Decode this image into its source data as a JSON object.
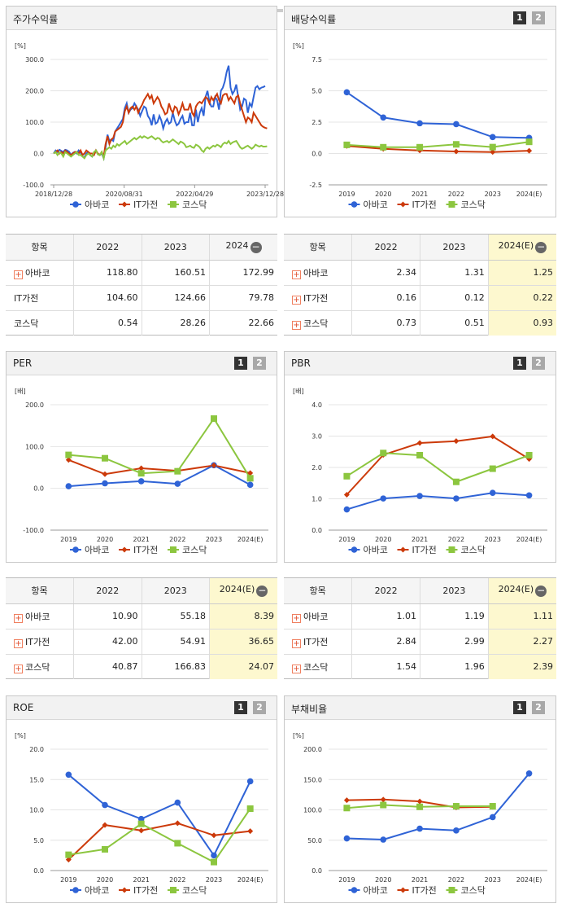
{
  "colors": {
    "s1": "#2f63d6",
    "s2": "#cc3a0a",
    "s3": "#8cc63f"
  },
  "legend": [
    "아바코",
    "IT가전",
    "코스닥"
  ],
  "pages": {
    "p1": "1",
    "p2": "2"
  },
  "panels": {
    "stock": {
      "title": "주가수익률"
    },
    "div": {
      "title": "배당수익률"
    },
    "per": {
      "title": "PER"
    },
    "pbr": {
      "title": "PBR"
    },
    "roe": {
      "title": "ROE"
    },
    "debt": {
      "title": "부채비율"
    }
  },
  "chart_data": [
    {
      "id": "stock",
      "type": "line",
      "unit": "[%]",
      "x_ticks": [
        "2018/12/28",
        "2020/08/31",
        "2022/04/29",
        "2023/12/28"
      ],
      "y_ticks": [
        "300.0",
        "200.0",
        "100.0",
        "0.0",
        "-100.0"
      ],
      "ylim": [
        -100,
        300
      ],
      "markers": false,
      "series": [
        {
          "name": "아바코",
          "values": [
            0,
            10,
            5,
            12,
            8,
            5,
            12,
            10,
            6,
            -5,
            2,
            5,
            0,
            10,
            3,
            -10,
            -12,
            0,
            5,
            -5,
            -10,
            0,
            10,
            -2,
            -5,
            0,
            -15,
            20,
            60,
            40,
            45,
            40,
            70,
            80,
            90,
            100,
            110,
            145,
            160,
            130,
            140,
            145,
            160,
            150,
            140,
            120,
            135,
            150,
            145,
            120,
            110,
            90,
            125,
            95,
            100,
            120,
            105,
            80,
            100,
            110,
            95,
            100,
            130,
            105,
            90,
            95,
            110,
            120,
            95,
            100,
            100,
            130,
            90,
            90,
            140,
            100,
            130,
            145,
            120,
            180,
            200,
            165,
            150,
            150,
            180,
            170,
            140,
            200,
            210,
            230,
            260,
            280,
            210,
            190,
            200,
            220,
            180,
            140,
            150,
            175,
            170,
            130,
            160,
            150,
            180,
            210,
            215,
            205,
            210,
            212,
            215
          ]
        },
        {
          "name": "IT가전",
          "values": [
            0,
            5,
            10,
            0,
            5,
            0,
            10,
            5,
            0,
            -5,
            0,
            5,
            5,
            0,
            10,
            -5,
            0,
            10,
            5,
            0,
            0,
            -5,
            10,
            0,
            -5,
            5,
            -10,
            30,
            55,
            30,
            45,
            50,
            70,
            75,
            80,
            85,
            100,
            135,
            150,
            130,
            145,
            150,
            140,
            150,
            130,
            145,
            155,
            170,
            180,
            190,
            175,
            185,
            160,
            170,
            180,
            170,
            150,
            140,
            125,
            130,
            160,
            140,
            130,
            150,
            145,
            125,
            140,
            160,
            140,
            140,
            140,
            160,
            130,
            120,
            150,
            160,
            165,
            160,
            170,
            180,
            175,
            160,
            180,
            170,
            180,
            190,
            170,
            160,
            185,
            190,
            190,
            170,
            180,
            170,
            160,
            180,
            185,
            160,
            140,
            120,
            100,
            115,
            110,
            100,
            130,
            120,
            110,
            100,
            90,
            85,
            82,
            80
          ]
        },
        {
          "name": "코스닥",
          "values": [
            0,
            5,
            -5,
            3,
            0,
            -10,
            5,
            0,
            -5,
            -10,
            -5,
            0,
            5,
            -5,
            -5,
            -10,
            -15,
            -5,
            0,
            -5,
            -10,
            5,
            10,
            -3,
            -5,
            5,
            -15,
            10,
            15,
            20,
            15,
            25,
            20,
            30,
            25,
            30,
            35,
            40,
            30,
            35,
            40,
            45,
            50,
            45,
            50,
            55,
            50,
            55,
            52,
            48,
            52,
            55,
            50,
            45,
            50,
            48,
            40,
            35,
            38,
            40,
            35,
            40,
            45,
            40,
            35,
            30,
            38,
            35,
            30,
            20,
            22,
            25,
            20,
            18,
            28,
            25,
            20,
            10,
            5,
            15,
            20,
            15,
            20,
            25,
            22,
            28,
            25,
            20,
            30,
            35,
            32,
            40,
            30,
            35,
            38,
            40,
            30,
            20,
            15,
            18,
            22,
            25,
            20,
            15,
            20,
            28,
            25,
            22,
            25,
            22,
            22,
            23
          ]
        }
      ]
    },
    {
      "id": "div",
      "type": "line",
      "unit": "[%]",
      "x_ticks": [
        "2019",
        "2020",
        "2021",
        "2022",
        "2023",
        "2024(E)"
      ],
      "y_ticks": [
        "7.5",
        "5.0",
        "2.5",
        "0.0",
        "-2.5"
      ],
      "ylim": [
        -2.5,
        7.5
      ],
      "series": [
        {
          "name": "아바코",
          "values": [
            4.88,
            2.87,
            2.41,
            2.34,
            1.31,
            1.25
          ]
        },
        {
          "name": "IT가전",
          "values": [
            0.6,
            0.37,
            0.24,
            0.16,
            0.12,
            0.22
          ]
        },
        {
          "name": "코스닥",
          "values": [
            0.69,
            0.5,
            0.5,
            0.73,
            0.51,
            0.93
          ]
        }
      ]
    },
    {
      "id": "per",
      "type": "line",
      "unit": "[배]",
      "x_ticks": [
        "2019",
        "2020",
        "2021",
        "2022",
        "2023",
        "2024(E)"
      ],
      "y_ticks": [
        "200.0",
        "100.0",
        "0.0",
        "-100.0"
      ],
      "ylim": [
        -100,
        200
      ],
      "series": [
        {
          "name": "아바코",
          "values": [
            5.0,
            12.0,
            17.0,
            10.9,
            55.18,
            8.39
          ]
        },
        {
          "name": "IT가전",
          "values": [
            68.0,
            34.0,
            48.0,
            42.0,
            54.91,
            36.65
          ]
        },
        {
          "name": "코스닥",
          "values": [
            80.0,
            72.0,
            36.0,
            40.87,
            166.83,
            24.07
          ]
        }
      ]
    },
    {
      "id": "pbr",
      "type": "line",
      "unit": "[배]",
      "x_ticks": [
        "2019",
        "2020",
        "2021",
        "2022",
        "2023",
        "2024(E)"
      ],
      "y_ticks": [
        "4.0",
        "3.0",
        "2.0",
        "1.0",
        "0.0"
      ],
      "ylim": [
        0,
        4
      ],
      "series": [
        {
          "name": "아바코",
          "values": [
            0.66,
            1.01,
            1.09,
            1.01,
            1.19,
            1.11
          ]
        },
        {
          "name": "IT가전",
          "values": [
            1.13,
            2.4,
            2.78,
            2.84,
            2.99,
            2.27
          ]
        },
        {
          "name": "코스닥",
          "values": [
            1.72,
            2.46,
            2.39,
            1.54,
            1.96,
            2.39
          ]
        }
      ]
    },
    {
      "id": "roe",
      "type": "line",
      "unit": "[%]",
      "x_ticks": [
        "2019",
        "2020",
        "2021",
        "2022",
        "2023",
        "2024(E)"
      ],
      "y_ticks": [
        "20.0",
        "15.0",
        "10.0",
        "5.0",
        "0.0"
      ],
      "ylim": [
        0,
        20
      ],
      "series": [
        {
          "name": "아바코",
          "values": [
            15.8,
            10.8,
            8.5,
            11.2,
            2.5,
            14.7
          ]
        },
        {
          "name": "IT가전",
          "values": [
            1.8,
            7.5,
            6.6,
            7.8,
            5.8,
            6.5
          ]
        },
        {
          "name": "코스닥",
          "values": [
            2.6,
            3.5,
            7.7,
            4.5,
            1.4,
            10.2
          ]
        }
      ]
    },
    {
      "id": "debt",
      "type": "line",
      "unit": "[%]",
      "x_ticks": [
        "2019",
        "2020",
        "2021",
        "2022",
        "2023",
        "2024(E)"
      ],
      "y_ticks": [
        "200.0",
        "150.0",
        "100.0",
        "50.0",
        "0.0"
      ],
      "ylim": [
        0,
        200
      ],
      "series": [
        {
          "name": "아바코",
          "values": [
            53,
            51,
            69,
            66,
            88,
            160
          ]
        },
        {
          "name": "IT가전",
          "values": [
            116,
            117,
            114,
            104,
            105,
            null
          ]
        },
        {
          "name": "코스닥",
          "values": [
            103,
            108,
            105,
            106,
            106,
            null
          ]
        }
      ]
    }
  ],
  "tables": {
    "stock": {
      "header": [
        "항목",
        "2022",
        "2023",
        "2024"
      ],
      "rows": [
        {
          "label": "아바코",
          "plus": true,
          "v": [
            "118.80",
            "160.51",
            "172.99"
          ]
        },
        {
          "label": "IT가전",
          "plus": false,
          "v": [
            "104.60",
            "124.66",
            "79.78"
          ]
        },
        {
          "label": "코스닥",
          "plus": false,
          "v": [
            "0.54",
            "28.26",
            "22.66"
          ]
        }
      ]
    },
    "div": {
      "header": [
        "항목",
        "2022",
        "2023",
        "2024(E)"
      ],
      "rows": [
        {
          "label": "아바코",
          "plus": true,
          "v": [
            "2.34",
            "1.31",
            "1.25"
          ]
        },
        {
          "label": "IT가전",
          "plus": true,
          "v": [
            "0.16",
            "0.12",
            "0.22"
          ]
        },
        {
          "label": "코스닥",
          "plus": true,
          "v": [
            "0.73",
            "0.51",
            "0.93"
          ]
        }
      ]
    },
    "per": {
      "header": [
        "항목",
        "2022",
        "2023",
        "2024(E)"
      ],
      "rows": [
        {
          "label": "아바코",
          "plus": true,
          "v": [
            "10.90",
            "55.18",
            "8.39"
          ]
        },
        {
          "label": "IT가전",
          "plus": true,
          "v": [
            "42.00",
            "54.91",
            "36.65"
          ]
        },
        {
          "label": "코스닥",
          "plus": true,
          "v": [
            "40.87",
            "166.83",
            "24.07"
          ]
        }
      ]
    },
    "pbr": {
      "header": [
        "항목",
        "2022",
        "2023",
        "2024(E)"
      ],
      "rows": [
        {
          "label": "아바코",
          "plus": true,
          "v": [
            "1.01",
            "1.19",
            "1.11"
          ]
        },
        {
          "label": "IT가전",
          "plus": true,
          "v": [
            "2.84",
            "2.99",
            "2.27"
          ]
        },
        {
          "label": "코스닥",
          "plus": true,
          "v": [
            "1.54",
            "1.96",
            "2.39"
          ]
        }
      ]
    }
  }
}
